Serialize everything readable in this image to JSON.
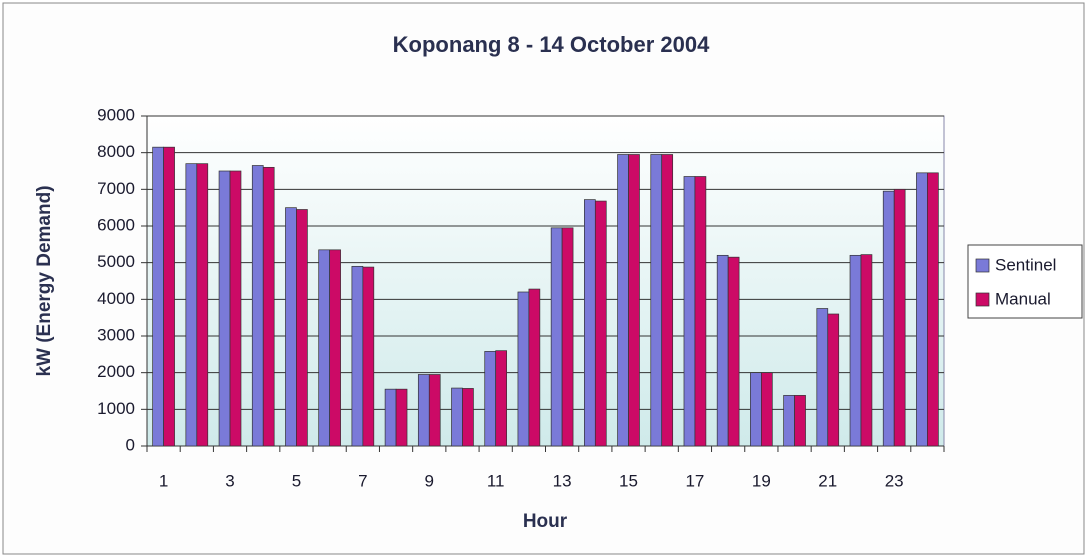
{
  "chart_data": {
    "type": "bar",
    "title": "Koponang 8 - 14 October 2004",
    "x_label": "Hour",
    "y_label": "kW (Energy Demand)",
    "categories": [
      1,
      null,
      3,
      null,
      5,
      null,
      7,
      null,
      9,
      null,
      11,
      null,
      13,
      null,
      15,
      null,
      17,
      null,
      19,
      null,
      21,
      null,
      23,
      null
    ],
    "series": [
      {
        "name": "Sentinel",
        "color": "#7a7ad8",
        "values": [
          8150,
          7700,
          7500,
          7650,
          6500,
          5350,
          4900,
          1550,
          1950,
          1580,
          2580,
          4200,
          5950,
          6720,
          7950,
          7950,
          7350,
          5200,
          2000,
          1380,
          3750,
          5200,
          6950,
          7450
        ]
      },
      {
        "name": "Manual",
        "color": "#cc0a66",
        "values": [
          8150,
          7700,
          7500,
          7600,
          6450,
          5350,
          4880,
          1550,
          1950,
          1570,
          2600,
          4280,
          5950,
          6680,
          7950,
          7950,
          7350,
          5150,
          2000,
          1380,
          3600,
          5220,
          7000,
          7450
        ]
      }
    ],
    "ylim": [
      0,
      9000
    ],
    "yticks": [
      0,
      1000,
      2000,
      3000,
      4000,
      5000,
      6000,
      7000,
      8000,
      9000
    ],
    "grid": true,
    "legend": "right"
  }
}
